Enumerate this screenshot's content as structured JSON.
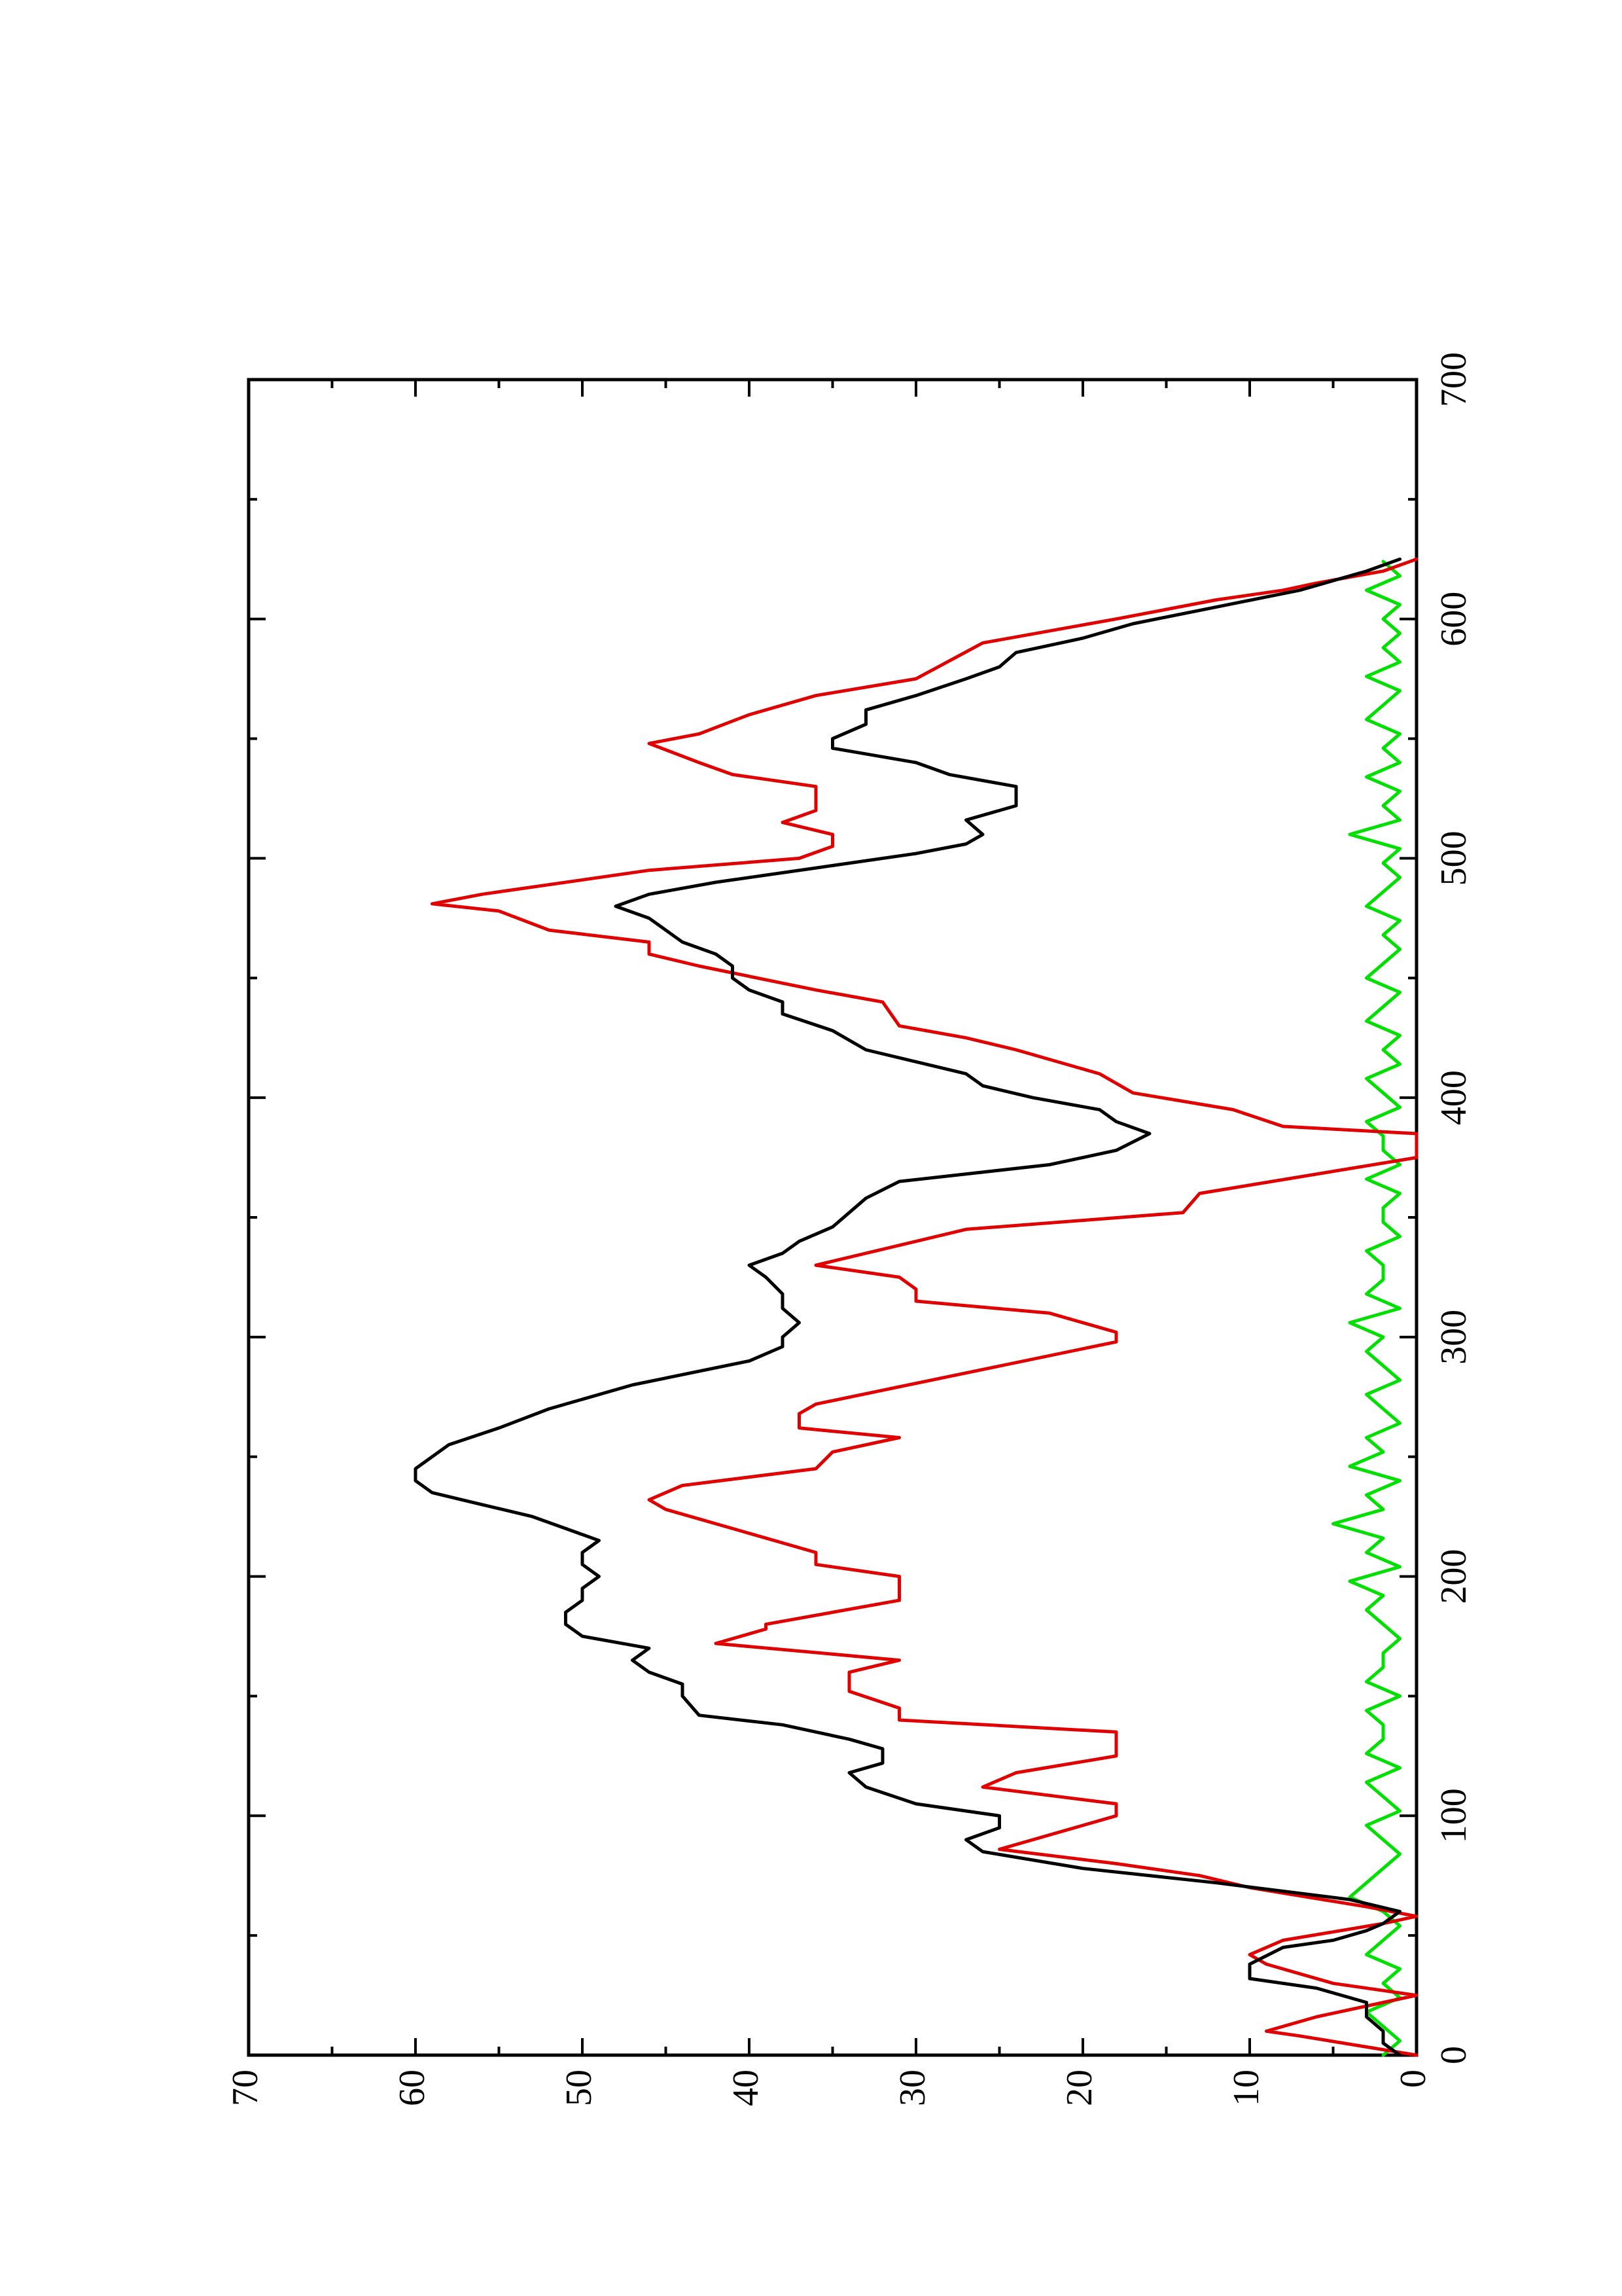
{
  "chart_data": {
    "type": "line",
    "title": "",
    "xlabel": "",
    "ylabel": "",
    "orientation": "rotated 90 degrees counter-clockwise (page in landscape)",
    "xlim": [
      0,
      700
    ],
    "ylim": [
      0,
      70
    ],
    "x_ticks": [
      0,
      100,
      200,
      300,
      400,
      500,
      600,
      700
    ],
    "y_ticks": [
      0,
      10,
      20,
      30,
      40,
      50,
      60,
      70
    ],
    "x_tick_labels": [
      "0",
      "100",
      "200",
      "300",
      "400",
      "500",
      "600",
      "700"
    ],
    "y_tick_labels": [
      "0",
      "10",
      "20",
      "30",
      "40",
      "50",
      "60",
      "70"
    ],
    "x_minor_step": 50,
    "y_minor_step": 5,
    "grid": false,
    "legend": "none",
    "series": [
      {
        "color": "#000000",
        "x": [
          0,
          5,
          10,
          16,
          22,
          28,
          32,
          38,
          45,
          48,
          52,
          55,
          60,
          65,
          72,
          78,
          85,
          90,
          95,
          100,
          105,
          112,
          118,
          122,
          125,
          128,
          132,
          138,
          142,
          150,
          155,
          160,
          165,
          170,
          175,
          180,
          185,
          190,
          195,
          200,
          205,
          210,
          215,
          220,
          225,
          230,
          235,
          240,
          245,
          250,
          255,
          262,
          270,
          280,
          290,
          296,
          300,
          306,
          312,
          318,
          325,
          330,
          335,
          340,
          346,
          352,
          358,
          365,
          372,
          378,
          385,
          390,
          395,
          400,
          405,
          410,
          420,
          428,
          435,
          440,
          445,
          450,
          455,
          460,
          465,
          470,
          475,
          480,
          485,
          490,
          496,
          502,
          506,
          510,
          516,
          522,
          530,
          535,
          540,
          546,
          550,
          556,
          562,
          568,
          575,
          580,
          586,
          592,
          598,
          605,
          612,
          620,
          625
        ],
        "y": [
          1,
          2,
          2,
          3,
          3,
          6,
          10,
          10,
          8,
          5,
          3,
          2,
          1,
          4,
          12,
          20,
          26,
          27,
          25,
          25,
          30,
          33,
          34,
          32,
          32,
          32,
          34,
          38,
          43,
          44,
          44,
          46,
          47,
          46,
          50,
          51,
          51,
          50,
          50,
          49,
          50,
          50,
          49,
          51,
          53,
          56,
          59,
          60,
          60,
          59,
          58,
          55,
          52,
          47,
          40,
          38,
          38,
          37,
          38,
          38,
          39,
          40,
          38,
          37,
          35,
          34,
          33,
          31,
          22,
          18,
          16,
          18,
          19,
          23,
          26,
          27,
          33,
          35,
          38,
          38,
          40,
          41,
          41,
          42,
          44,
          45,
          46,
          48,
          46,
          42,
          36,
          30,
          27,
          26,
          27,
          24,
          24,
          28,
          30,
          35,
          35,
          33,
          33,
          30,
          27,
          25,
          24,
          20,
          17,
          12,
          7,
          3,
          1
        ]
      },
      {
        "color": "#e00000",
        "x": [
          0,
          8,
          10,
          16,
          22,
          25,
          30,
          38,
          42,
          48,
          55,
          58,
          62,
          70,
          75,
          80,
          86,
          100,
          105,
          112,
          118,
          125,
          135,
          140,
          145,
          152,
          160,
          165,
          172,
          178,
          180,
          190,
          200,
          205,
          210,
          220,
          228,
          232,
          238,
          245,
          252,
          258,
          262,
          268,
          272,
          285,
          298,
          302,
          310,
          315,
          320,
          325,
          330,
          345,
          352,
          360,
          375,
          385,
          388,
          395,
          402,
          410,
          420,
          425,
          430,
          440,
          445,
          455,
          460,
          465,
          470,
          478,
          481,
          485,
          495,
          500,
          505,
          510,
          515,
          520,
          530,
          535,
          540,
          548,
          552,
          560,
          568,
          575,
          590,
          600,
          608,
          612,
          615,
          620,
          625
        ],
        "y": [
          0,
          7,
          9,
          6,
          2,
          0,
          5,
          9,
          10,
          8,
          2,
          0,
          3,
          10,
          13,
          18,
          25,
          18,
          18,
          26,
          24,
          18,
          18,
          31,
          31,
          34,
          34,
          31,
          42,
          39,
          39,
          31,
          31,
          36,
          36,
          41,
          45,
          46,
          44,
          36,
          35,
          31,
          37,
          37,
          36,
          27,
          18,
          18,
          22,
          30,
          30,
          31,
          36,
          27,
          14,
          13,
          0,
          0,
          8,
          11,
          17,
          19,
          24,
          27,
          31,
          32,
          36,
          43,
          46,
          46,
          52,
          55,
          59,
          56,
          46,
          37,
          35,
          35,
          38,
          36,
          36,
          41,
          43,
          46,
          43,
          40,
          36,
          30,
          26,
          18,
          12,
          8,
          6,
          2,
          0
        ]
      },
      {
        "color": "#00e000",
        "x": [
          0,
          6,
          12,
          18,
          24,
          30,
          36,
          42,
          48,
          54,
          60,
          66,
          72,
          78,
          84,
          90,
          96,
          102,
          108,
          114,
          120,
          126,
          132,
          138,
          144,
          150,
          156,
          162,
          168,
          174,
          180,
          186,
          192,
          198,
          204,
          210,
          216,
          222,
          228,
          234,
          240,
          246,
          252,
          258,
          264,
          270,
          276,
          282,
          288,
          294,
          300,
          306,
          312,
          318,
          324,
          330,
          336,
          342,
          348,
          354,
          360,
          366,
          372,
          378,
          384,
          390,
          396,
          402,
          408,
          414,
          420,
          426,
          432,
          438,
          444,
          450,
          456,
          462,
          468,
          474,
          480,
          486,
          492,
          498,
          504,
          510,
          516,
          522,
          528,
          534,
          540,
          546,
          552,
          558,
          564,
          570,
          576,
          582,
          588,
          594,
          600,
          606,
          612,
          618,
          624
        ],
        "y": [
          2,
          1,
          2,
          3,
          1,
          2,
          1,
          3,
          2,
          1,
          2,
          4,
          3,
          2,
          1,
          2,
          3,
          1,
          2,
          3,
          1,
          3,
          2,
          2,
          3,
          1,
          3,
          2,
          2,
          1,
          2,
          3,
          2,
          4,
          1,
          3,
          2,
          5,
          2,
          3,
          1,
          4,
          2,
          3,
          1,
          2,
          3,
          1,
          2,
          3,
          2,
          4,
          1,
          3,
          2,
          2,
          3,
          1,
          2,
          2,
          1,
          3,
          1,
          2,
          2,
          3,
          1,
          2,
          3,
          1,
          2,
          1,
          3,
          2,
          1,
          3,
          2,
          1,
          2,
          1,
          3,
          2,
          1,
          2,
          1,
          4,
          1,
          2,
          1,
          3,
          1,
          2,
          1,
          3,
          2,
          1,
          3,
          1,
          2,
          1,
          2,
          1,
          3,
          1,
          2
        ]
      }
    ]
  }
}
